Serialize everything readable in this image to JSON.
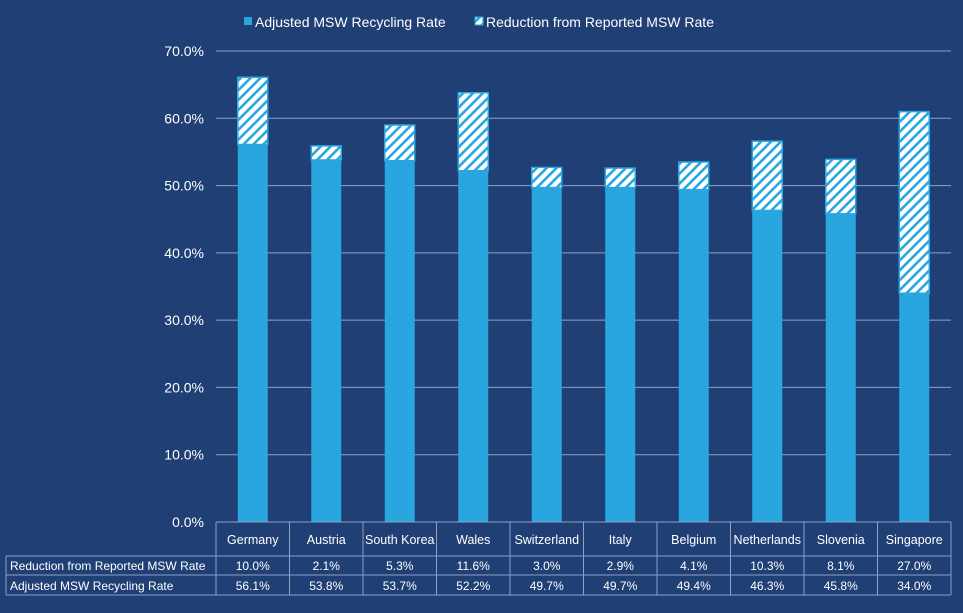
{
  "chart_data": {
    "type": "bar",
    "stacked": true,
    "categories": [
      "Germany",
      "Austria",
      "South Korea",
      "Wales",
      "Switzerland",
      "Italy",
      "Belgium",
      "Netherlands",
      "Slovenia",
      "Singapore"
    ],
    "series": [
      {
        "name": "Adjusted MSW Recycling Rate",
        "values": [
          56.1,
          53.8,
          53.7,
          52.2,
          49.7,
          49.7,
          49.4,
          46.3,
          45.8,
          34.0
        ],
        "labels": [
          "56.1%",
          "53.8%",
          "53.7%",
          "52.2%",
          "49.7%",
          "49.7%",
          "49.4%",
          "46.3%",
          "45.8%",
          "34.0%"
        ],
        "color": "#29a6e0",
        "fill": "solid"
      },
      {
        "name": "Reduction from Reported MSW Rate",
        "values": [
          10.0,
          2.1,
          5.3,
          11.6,
          3.0,
          2.9,
          4.1,
          10.3,
          8.1,
          27.0
        ],
        "labels": [
          "10.0%",
          "2.1%",
          "5.3%",
          "11.6%",
          "3.0%",
          "2.9%",
          "4.1%",
          "10.3%",
          "8.1%",
          "27.0%"
        ],
        "color": "#29a6e0",
        "fill": "hatched"
      }
    ],
    "ylim": [
      0,
      70
    ],
    "yticks": [
      "0.0%",
      "10.0%",
      "20.0%",
      "30.0%",
      "40.0%",
      "50.0%",
      "60.0%",
      "70.0%"
    ],
    "grid": true,
    "legend": "top-center",
    "data_table": true,
    "title": "",
    "xlabel": "",
    "ylabel": ""
  },
  "colors": {
    "background": "#1f3f75",
    "bar": "#29a6e0",
    "hatch_bg": "#ffffff",
    "gridline": "#8ea2c2",
    "text": "#ffffff"
  }
}
